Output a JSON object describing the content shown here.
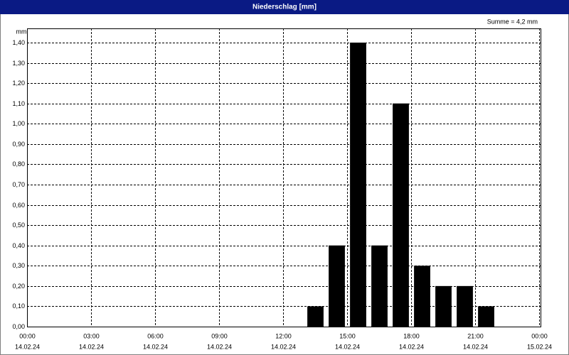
{
  "window_title": "Niederschlag [mm]",
  "chart_data": {
    "type": "histogram",
    "y_unit": "mm",
    "annotation": "Summe = 4,2 mm",
    "bins": [
      13,
      14,
      15,
      16,
      17,
      18,
      19,
      20,
      21,
      22
    ],
    "values": [
      0.1,
      0.4,
      1.4,
      0.4,
      1.1,
      0.3,
      0.2,
      0.2,
      0.1
    ],
    "color": "#000000",
    "xlim": [
      0,
      24
    ],
    "xticks": [
      {
        "value": 0,
        "label": "00:00"
      },
      {
        "value": 3,
        "label": "03:00"
      },
      {
        "value": 6,
        "label": "06:00"
      },
      {
        "value": 9,
        "label": "09:00"
      },
      {
        "value": 12,
        "label": "12:00"
      },
      {
        "value": 15,
        "label": "15:00"
      },
      {
        "value": 18,
        "label": "18:00"
      },
      {
        "value": 21,
        "label": "21:00"
      },
      {
        "value": 24,
        "label": "00:00"
      }
    ],
    "xtick_dates": [
      "14.02.24",
      "14.02.24",
      "14.02.24",
      "14.02.24",
      "14.02.24",
      "14.02.24",
      "14.02.24",
      "14.02.24",
      "15.02.24"
    ],
    "ylim": [
      0,
      1.47
    ],
    "yticks": [
      {
        "value": 0,
        "label": "0,00"
      },
      {
        "value": 0.1,
        "label": "0,10"
      },
      {
        "value": 0.2,
        "label": "0,20"
      },
      {
        "value": 0.3,
        "label": "0,30"
      },
      {
        "value": 0.4,
        "label": "0,40"
      },
      {
        "value": 0.5,
        "label": "0,50"
      },
      {
        "value": 0.6,
        "label": "0,60"
      },
      {
        "value": 0.7,
        "label": "0,70"
      },
      {
        "value": 0.8,
        "label": "0,80"
      },
      {
        "value": 0.9,
        "label": "0,90"
      },
      {
        "value": 1.0,
        "label": "1,00"
      },
      {
        "value": 1.1,
        "label": "1,10"
      },
      {
        "value": 1.2,
        "label": "1,20"
      },
      {
        "value": 1.3,
        "label": "1,30"
      },
      {
        "value": 1.4,
        "label": "1,40"
      }
    ],
    "grid": true
  }
}
